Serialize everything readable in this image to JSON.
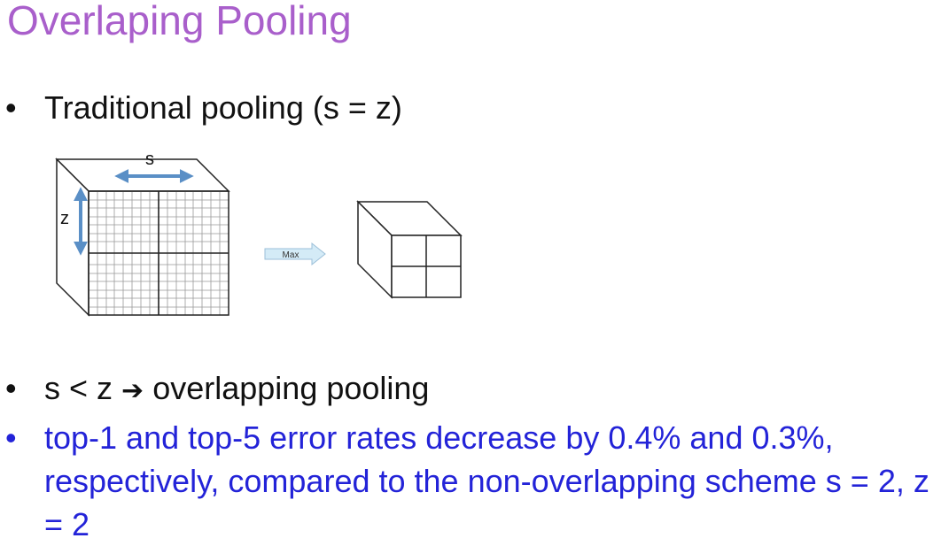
{
  "title": "Overlaping Pooling",
  "bullets": [
    {
      "text": "Traditional pooling (s = z)"
    },
    {
      "before": "s < z",
      "arrow": "➔",
      "after": "overlapping pooling"
    },
    {
      "text": "top-1 and top-5 error rates decrease by 0.4% and 0.3%, respectively, compared to the non-overlapping scheme s = 2, z = 2"
    }
  ],
  "diagram": {
    "label_s": "s",
    "label_z": "z",
    "max_label": "Max"
  },
  "colors": {
    "title": "#a95fcb",
    "highlight_text": "#2323d8",
    "dimension_arrow": "#5a8fc6",
    "max_arrow_fill": "#d4ebf7"
  }
}
